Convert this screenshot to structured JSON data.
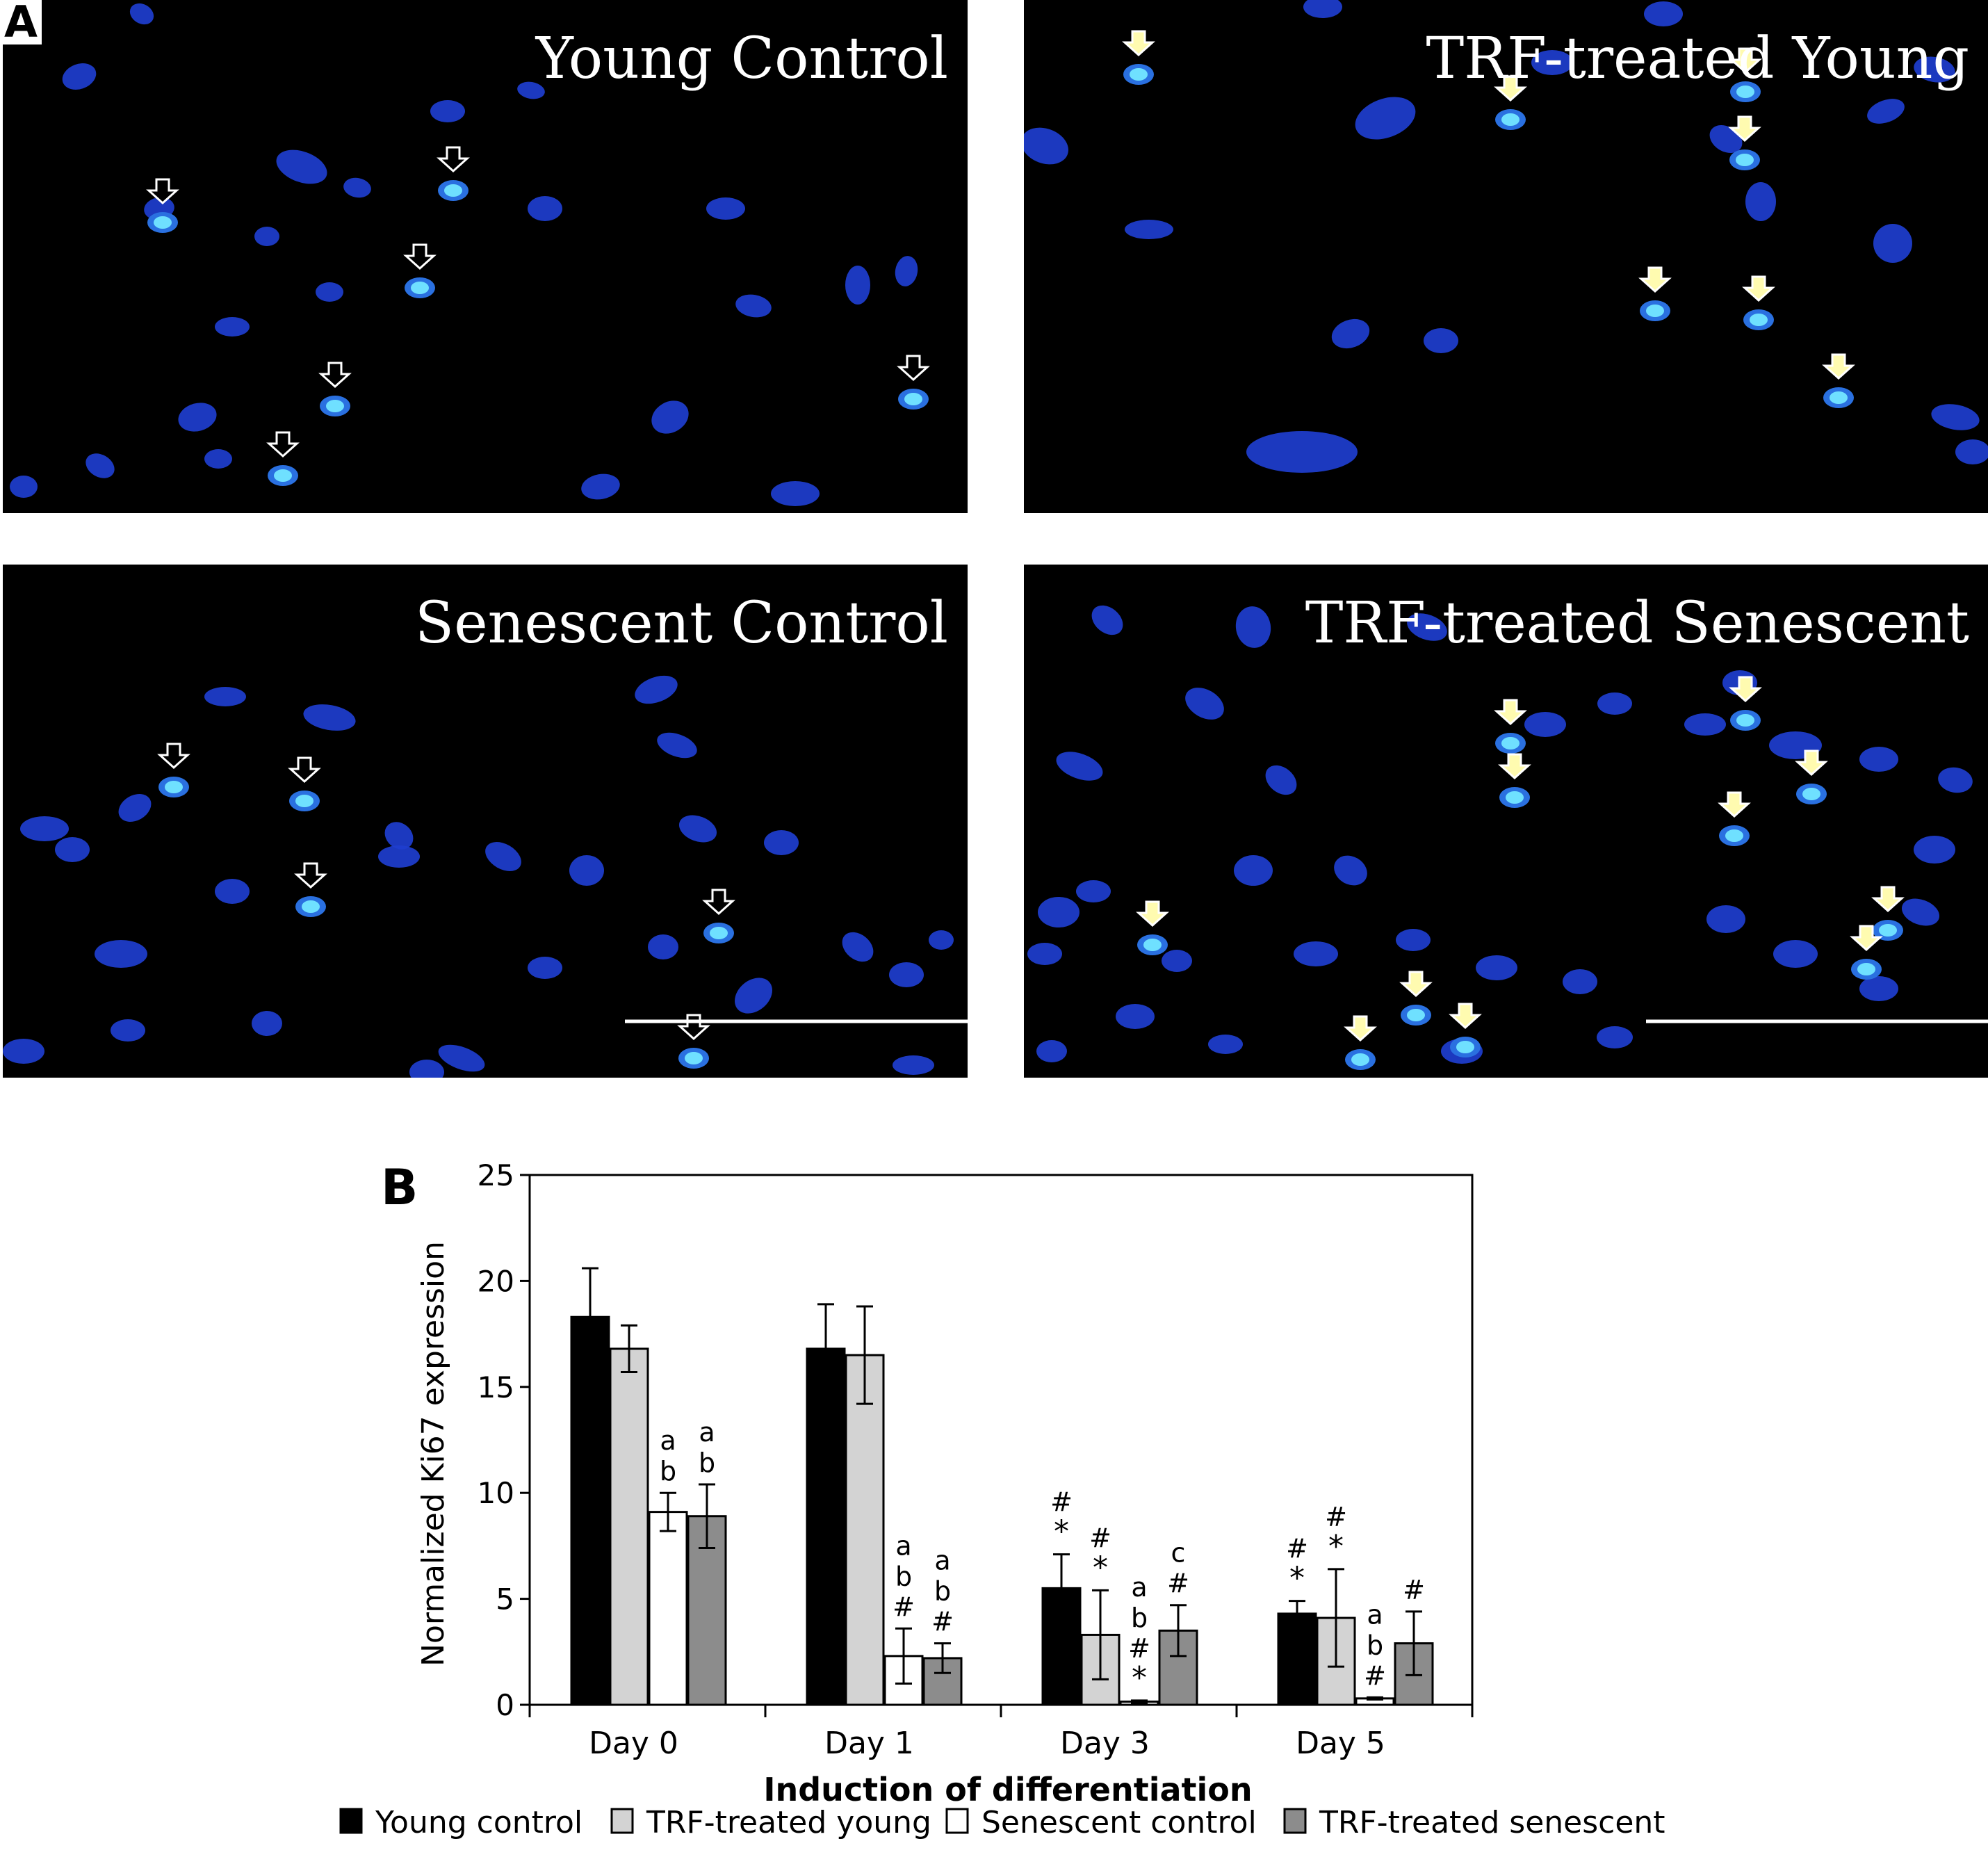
{
  "panel_a": {
    "letter": "A",
    "images": [
      {
        "key": "young_control",
        "label": "Young Control",
        "scale_bar": false
      },
      {
        "key": "trf_young",
        "label": "TRF-treated Young",
        "scale_bar": false
      },
      {
        "key": "senescent_control",
        "label": "Senescent Control",
        "scale_bar": true
      },
      {
        "key": "trf_senescent",
        "label": "TRF-treated Senescent",
        "scale_bar": true
      }
    ]
  },
  "panel_b": {
    "letter": "B"
  },
  "colors": {
    "nucleus_blue": "#1e3ecf",
    "ki67_cyan": "#6fe0ff",
    "young_control": "#000000",
    "trf_young": "#d3d3d3",
    "senescent_control": "#ffffff",
    "trf_senescent": "#8c8c8c"
  },
  "chart_data": {
    "type": "bar",
    "xlabel": "Induction of differentiation",
    "ylabel": "Normalized Ki67 expression",
    "ylim": [
      0,
      25
    ],
    "yticks": [
      0,
      5,
      10,
      15,
      20,
      25
    ],
    "categories": [
      "Day 0",
      "Day 1",
      "Day 3",
      "Day 5"
    ],
    "legend_position": "bottom",
    "series": [
      {
        "name": "Young control",
        "color": "#000000",
        "values": [
          18.3,
          16.8,
          5.5,
          4.3
        ],
        "errors": [
          2.3,
          2.1,
          1.6,
          0.6
        ],
        "annotations": [
          [],
          [],
          [
            "#",
            "*"
          ],
          [
            "#",
            "*"
          ]
        ]
      },
      {
        "name": "TRF-treated young",
        "color": "#d3d3d3",
        "values": [
          16.8,
          16.5,
          3.3,
          4.1
        ],
        "errors": [
          1.1,
          2.3,
          2.1,
          2.3
        ],
        "annotations": [
          [],
          [],
          [
            "#",
            "*"
          ],
          [
            "#",
            "*"
          ]
        ]
      },
      {
        "name": "Senescent control",
        "color": "#ffffff",
        "values": [
          9.1,
          2.3,
          0.15,
          0.3
        ],
        "errors": [
          0.9,
          1.3,
          0.05,
          0.05
        ],
        "annotations": [
          [
            "a",
            "b"
          ],
          [
            "a",
            "b",
            "#"
          ],
          [
            "a",
            "b",
            "#",
            "*"
          ],
          [
            "a",
            "b",
            "#"
          ]
        ]
      },
      {
        "name": "TRF-treated senescent",
        "color": "#8c8c8c",
        "values": [
          8.9,
          2.2,
          3.5,
          2.9
        ],
        "errors": [
          1.5,
          0.7,
          1.2,
          1.5
        ],
        "annotations": [
          [
            "a",
            "b"
          ],
          [
            "a",
            "b",
            "#"
          ],
          [
            "c",
            "#"
          ],
          [
            "#"
          ]
        ]
      }
    ]
  }
}
